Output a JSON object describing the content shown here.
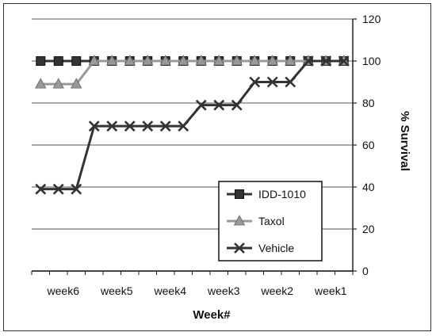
{
  "chart_data": {
    "type": "line",
    "xlabel": "Week#",
    "ylabel": "% Survival",
    "ylim": [
      0,
      120
    ],
    "yticks": [
      0,
      20,
      40,
      60,
      80,
      100,
      120
    ],
    "grid": true,
    "legend_position": "bottom-right",
    "axis_side": "right",
    "x_tick_labels": [
      "week6",
      "week5",
      "week4",
      "week3",
      "week2",
      "week1"
    ],
    "point_count": 18,
    "label_every": 3,
    "series": [
      {
        "name": "IDD-1010",
        "marker": "square",
        "color": "#333333",
        "values": [
          100,
          100,
          100,
          100,
          100,
          100,
          100,
          100,
          100,
          100,
          100,
          100,
          100,
          100,
          100,
          100,
          100,
          100
        ]
      },
      {
        "name": "Taxol",
        "marker": "triangle",
        "color": "#999999",
        "values": [
          89,
          89,
          89,
          100,
          100,
          100,
          100,
          100,
          100,
          100,
          100,
          100,
          100,
          100,
          100,
          100,
          100,
          100
        ]
      },
      {
        "name": "Vehicle",
        "marker": "x",
        "color": "#333333",
        "values": [
          39,
          39,
          39,
          69,
          69,
          69,
          69,
          69,
          69,
          79,
          79,
          79,
          90,
          90,
          90,
          100,
          100,
          100
        ]
      }
    ]
  }
}
